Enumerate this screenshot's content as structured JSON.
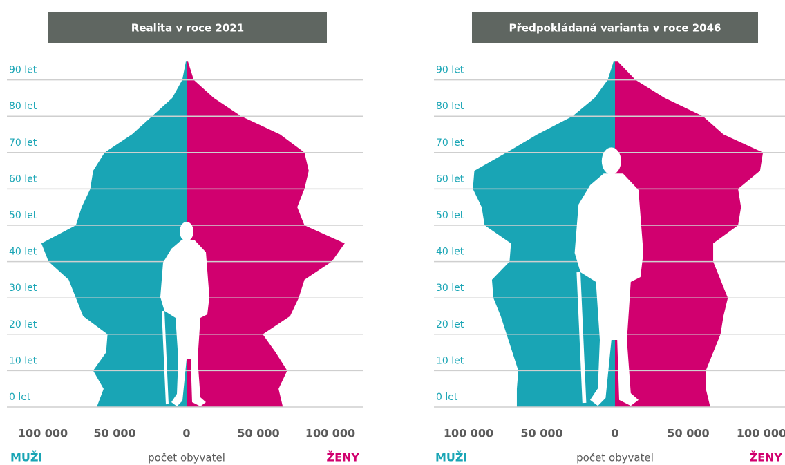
{
  "chart_data": [
    {
      "type": "pyramid",
      "title": "Realita v roce 2021",
      "xlabel": "počet obyvatel",
      "y": [
        0,
        5,
        10,
        15,
        20,
        25,
        30,
        35,
        40,
        45,
        50,
        55,
        60,
        65,
        70,
        75,
        80,
        85,
        90,
        95
      ],
      "series": [
        {
          "name": "MUŽI",
          "color": "#19a5b5",
          "values": [
            62500,
            57700,
            65000,
            56000,
            55000,
            72000,
            77000,
            82000,
            96000,
            101000,
            77000,
            73000,
            67000,
            65000,
            57000,
            38000,
            24000,
            10000,
            3000,
            500
          ]
        },
        {
          "name": "ŽENY",
          "color": "#d1006f",
          "values": [
            67000,
            64000,
            70000,
            62000,
            53000,
            72000,
            78000,
            82000,
            101000,
            110000,
            82000,
            77000,
            82000,
            85000,
            82000,
            65000,
            38000,
            19000,
            5000,
            1000
          ]
        }
      ],
      "xlim": [
        -100000,
        100000
      ],
      "xticks": [
        {
          "value": -100000,
          "label": "100 000"
        },
        {
          "value": -50000,
          "label": "50 000"
        },
        0,
        {
          "value": 50000,
          "label": "50 000"
        },
        {
          "value": 100000,
          "label": "100 000"
        }
      ],
      "ylim": [
        0,
        100
      ],
      "yticks": [
        {
          "value": 0,
          "label": "0 let"
        },
        {
          "value": 10,
          "label": "10 let"
        },
        {
          "value": 20,
          "label": "20 let"
        },
        {
          "value": 30,
          "label": "30 let"
        },
        {
          "value": 40,
          "label": "40 let"
        },
        {
          "value": 50,
          "label": "50 let"
        },
        {
          "value": 60,
          "label": "60 let"
        },
        {
          "value": 70,
          "label": "70 let"
        },
        {
          "value": 80,
          "label": "80 let"
        },
        {
          "value": 90,
          "label": "90 let"
        }
      ],
      "grid": true
    },
    {
      "type": "pyramid",
      "title": "Předpokládaná varianta v roce 2046",
      "xlabel": "počet obyvatel",
      "y": [
        0,
        5,
        10,
        15,
        20,
        25,
        30,
        35,
        40,
        45,
        50,
        55,
        60,
        65,
        70,
        75,
        80,
        85,
        90,
        95
      ],
      "series": [
        {
          "name": "MUŽI",
          "color": "#19a5b5",
          "values": [
            67000,
            67000,
            66000,
            70000,
            74000,
            78000,
            83000,
            84000,
            72000,
            71000,
            89000,
            91000,
            97000,
            96000,
            74000,
            53000,
            29000,
            14000,
            5000,
            1000
          ]
        },
        {
          "name": "ŽENY",
          "color": "#d1006f",
          "values": [
            65000,
            62000,
            62000,
            67000,
            72000,
            74000,
            77000,
            72000,
            67000,
            67000,
            84000,
            86000,
            84000,
            99000,
            101000,
            74000,
            60000,
            34000,
            14000,
            2000
          ]
        }
      ],
      "xlim": [
        -100000,
        100000
      ],
      "xticks": [
        {
          "value": -100000,
          "label": "100 000"
        },
        {
          "value": -50000,
          "label": "50 000"
        },
        0,
        {
          "value": 50000,
          "label": "50 000"
        },
        {
          "value": 100000,
          "label": "100 000"
        }
      ],
      "ylim": [
        0,
        100
      ],
      "yticks": [
        {
          "value": 0,
          "label": "0 let"
        },
        {
          "value": 10,
          "label": "10 let"
        },
        {
          "value": 20,
          "label": "20 let"
        },
        {
          "value": 30,
          "label": "30 let"
        },
        {
          "value": 40,
          "label": "40 let"
        },
        {
          "value": 50,
          "label": "50 let"
        },
        {
          "value": 60,
          "label": "60 let"
        },
        {
          "value": 70,
          "label": "70 let"
        },
        {
          "value": 80,
          "label": "80 let"
        },
        {
          "value": 90,
          "label": "90 let"
        }
      ],
      "grid": true
    }
  ]
}
